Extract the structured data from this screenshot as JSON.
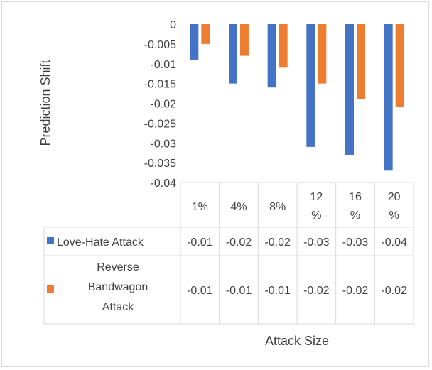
{
  "chart_data": {
    "type": "bar",
    "title": "",
    "xlabel": "Attack Size",
    "ylabel": "Prediction Shift",
    "ylim": [
      -0.04,
      0
    ],
    "yticks": [
      "0",
      "-0.005",
      "-0.01",
      "-0.015",
      "-0.02",
      "-0.025",
      "-0.03",
      "-0.035",
      "-0.04"
    ],
    "categories": [
      "1%",
      "4%",
      "8%",
      "12 %",
      "16 %",
      "20 %"
    ],
    "grid": false,
    "legend": "data-table",
    "series": [
      {
        "name": "Love-Hate Attack",
        "color": "#4472c4",
        "values": [
          -0.009,
          -0.015,
          -0.016,
          -0.031,
          -0.033,
          -0.037
        ],
        "table_values": [
          "-0.01",
          "-0.02",
          "-0.02",
          "-0.03",
          "-0.03",
          "-0.04"
        ]
      },
      {
        "name": "Reverse Bandwagon Attack",
        "color": "#ed7d31",
        "values": [
          -0.005,
          -0.008,
          -0.011,
          -0.015,
          -0.019,
          -0.021
        ],
        "table_values": [
          "-0.01",
          "-0.01",
          "-0.01",
          "-0.02",
          "-0.02",
          "-0.02"
        ]
      }
    ]
  }
}
